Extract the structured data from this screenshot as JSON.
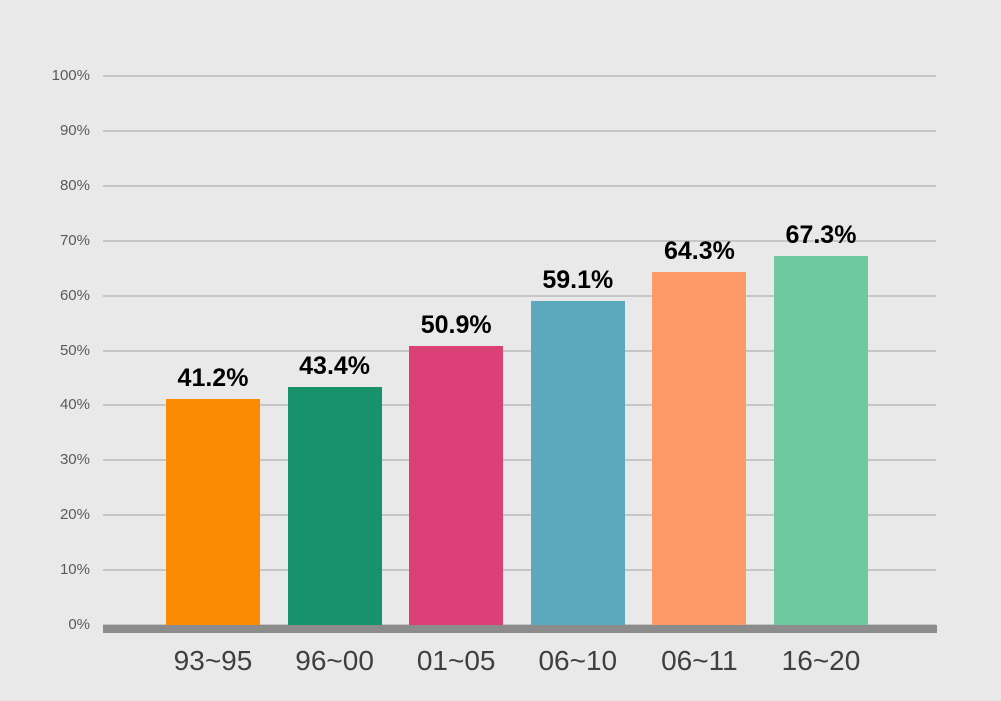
{
  "chart_data": {
    "type": "bar",
    "categories": [
      "93~95",
      "96~00",
      "01~05",
      "06~10",
      "06~11",
      "16~20"
    ],
    "values": [
      41.2,
      43.4,
      50.9,
      59.1,
      64.3,
      67.3
    ],
    "value_labels": [
      "41.2%",
      "43.4%",
      "50.9%",
      "59.1%",
      "64.3%",
      "67.3%"
    ],
    "bar_colors": [
      "#FB8B02",
      "#17926B",
      "#DB4077",
      "#5CA9BE",
      "#FE9A68",
      "#6FC99F"
    ],
    "y_ticks": [
      "0%",
      "10%",
      "20%",
      "30%",
      "40%",
      "50%",
      "60%",
      "70%",
      "80%",
      "90%",
      "100%"
    ],
    "title": "",
    "xlabel": "",
    "ylabel": "",
    "ylim": [
      0,
      100
    ],
    "grid": true,
    "legend_position": "none"
  },
  "colors": {
    "background": "#e9e9e9",
    "gridline": "#c6c6c6",
    "baseline": "#8c8c8c",
    "y_tick_label": "#5a5a5a",
    "category_label": "#3f3f3f",
    "value_label": "#000000"
  }
}
